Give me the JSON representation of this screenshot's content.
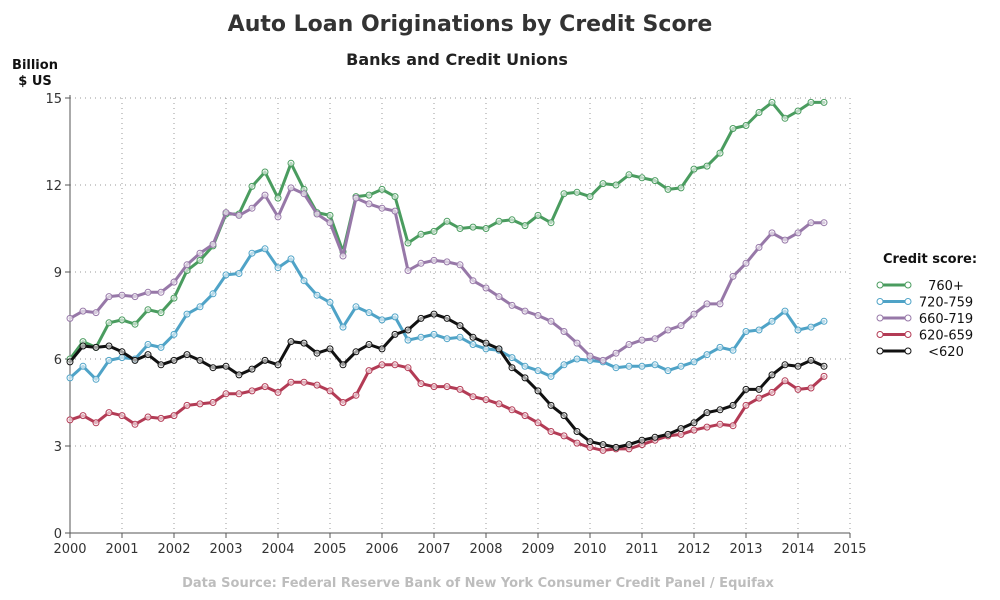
{
  "chart_data": {
    "type": "line",
    "title": "Auto Loan Originations by Credit Score",
    "subtitle": "Banks and Credit Unions",
    "ylabel_line1": "Billion",
    "ylabel_line2": "$ US",
    "xlim": [
      2000,
      2015
    ],
    "ylim": [
      0,
      15
    ],
    "x_ticks": [
      "2000",
      "2001",
      "2002",
      "2003",
      "2004",
      "2005",
      "2006",
      "2007",
      "2008",
      "2009",
      "2010",
      "2011",
      "2012",
      "2013",
      "2014",
      "2015"
    ],
    "y_ticks": [
      "0",
      "3",
      "6",
      "9",
      "12",
      "15"
    ],
    "grid": "dotted",
    "legend_title": "Credit score:",
    "legend_position": "right",
    "source": "Data Source: Federal Reserve Bank of New York Consumer Credit Panel / Equifax",
    "x": [
      2000.0,
      2000.25,
      2000.5,
      2000.75,
      2001.0,
      2001.25,
      2001.5,
      2001.75,
      2002.0,
      2002.25,
      2002.5,
      2002.75,
      2003.0,
      2003.25,
      2003.5,
      2003.75,
      2004.0,
      2004.25,
      2004.5,
      2004.75,
      2005.0,
      2005.25,
      2005.5,
      2005.75,
      2006.0,
      2006.25,
      2006.5,
      2006.75,
      2007.0,
      2007.25,
      2007.5,
      2007.75,
      2008.0,
      2008.25,
      2008.5,
      2008.75,
      2009.0,
      2009.25,
      2009.5,
      2009.75,
      2010.0,
      2010.25,
      2010.5,
      2010.75,
      2011.0,
      2011.25,
      2011.5,
      2011.75,
      2012.0,
      2012.25,
      2012.5,
      2012.75,
      2013.0,
      2013.25,
      2013.5,
      2013.75,
      2014.0,
      2014.25,
      2014.5
    ],
    "series": [
      {
        "name": "760+",
        "color": "#4a9c5f",
        "values": [
          6.0,
          6.6,
          6.4,
          7.25,
          7.35,
          7.2,
          7.7,
          7.6,
          8.1,
          9.05,
          9.4,
          9.9,
          11.0,
          11.0,
          11.95,
          12.45,
          11.55,
          12.75,
          11.85,
          11.05,
          10.95,
          9.7,
          11.6,
          11.65,
          11.85,
          11.6,
          10.0,
          10.3,
          10.4,
          10.75,
          10.5,
          10.55,
          10.5,
          10.75,
          10.8,
          10.6,
          10.95,
          10.7,
          11.7,
          11.75,
          11.6,
          12.05,
          12.0,
          12.35,
          12.25,
          12.15,
          11.85,
          11.9,
          12.55,
          12.65,
          13.1,
          13.95,
          14.05,
          14.5,
          14.85,
          14.3,
          14.55,
          14.85,
          14.85
        ]
      },
      {
        "name": "720-759",
        "color": "#4fa3c7",
        "values": [
          5.35,
          5.75,
          5.3,
          5.95,
          6.05,
          6.0,
          6.5,
          6.4,
          6.85,
          7.55,
          7.8,
          8.25,
          8.9,
          8.95,
          9.65,
          9.8,
          9.15,
          9.45,
          8.7,
          8.2,
          7.95,
          7.1,
          7.8,
          7.6,
          7.35,
          7.45,
          6.65,
          6.75,
          6.85,
          6.7,
          6.75,
          6.5,
          6.35,
          6.3,
          6.05,
          5.75,
          5.6,
          5.4,
          5.8,
          6.0,
          5.95,
          5.9,
          5.7,
          5.75,
          5.75,
          5.8,
          5.6,
          5.75,
          5.9,
          6.15,
          6.4,
          6.3,
          6.95,
          7.0,
          7.3,
          7.65,
          7.0,
          7.1,
          7.3
        ]
      },
      {
        "name": "660-719",
        "color": "#9778a8",
        "values": [
          7.4,
          7.65,
          7.6,
          8.15,
          8.2,
          8.15,
          8.3,
          8.3,
          8.65,
          9.25,
          9.65,
          9.95,
          11.05,
          10.95,
          11.2,
          11.65,
          10.9,
          11.9,
          11.7,
          11.0,
          10.7,
          9.55,
          11.55,
          11.35,
          11.2,
          11.1,
          9.05,
          9.3,
          9.4,
          9.35,
          9.25,
          8.7,
          8.45,
          8.15,
          7.85,
          7.65,
          7.5,
          7.3,
          6.95,
          6.55,
          6.1,
          5.95,
          6.2,
          6.5,
          6.65,
          6.7,
          7.0,
          7.15,
          7.55,
          7.9,
          7.9,
          8.85,
          9.3,
          9.85,
          10.35,
          10.1,
          10.35,
          10.7,
          10.7
        ]
      },
      {
        "name": "620-659",
        "color": "#b33b55",
        "values": [
          3.9,
          4.05,
          3.8,
          4.15,
          4.05,
          3.75,
          4.0,
          3.95,
          4.05,
          4.4,
          4.45,
          4.5,
          4.8,
          4.8,
          4.9,
          5.05,
          4.85,
          5.2,
          5.2,
          5.1,
          4.9,
          4.5,
          4.75,
          5.6,
          5.8,
          5.8,
          5.7,
          5.15,
          5.05,
          5.05,
          4.95,
          4.7,
          4.6,
          4.45,
          4.25,
          4.05,
          3.8,
          3.5,
          3.35,
          3.1,
          2.95,
          2.85,
          2.9,
          2.9,
          3.05,
          3.2,
          3.35,
          3.4,
          3.55,
          3.65,
          3.75,
          3.7,
          4.4,
          4.65,
          4.85,
          5.25,
          4.95,
          5.0,
          5.4
        ]
      },
      {
        "name": "<620",
        "color": "#111111",
        "values": [
          5.9,
          6.45,
          6.4,
          6.45,
          6.25,
          5.95,
          6.15,
          5.8,
          5.95,
          6.15,
          5.95,
          5.7,
          5.75,
          5.45,
          5.65,
          5.95,
          5.8,
          6.6,
          6.55,
          6.2,
          6.35,
          5.8,
          6.25,
          6.5,
          6.35,
          6.85,
          7.0,
          7.4,
          7.55,
          7.4,
          7.15,
          6.75,
          6.55,
          6.35,
          5.7,
          5.35,
          4.9,
          4.4,
          4.05,
          3.5,
          3.15,
          3.05,
          2.95,
          3.05,
          3.2,
          3.3,
          3.4,
          3.6,
          3.8,
          4.15,
          4.25,
          4.4,
          4.95,
          4.95,
          5.45,
          5.8,
          5.75,
          5.95,
          5.75
        ]
      }
    ]
  }
}
